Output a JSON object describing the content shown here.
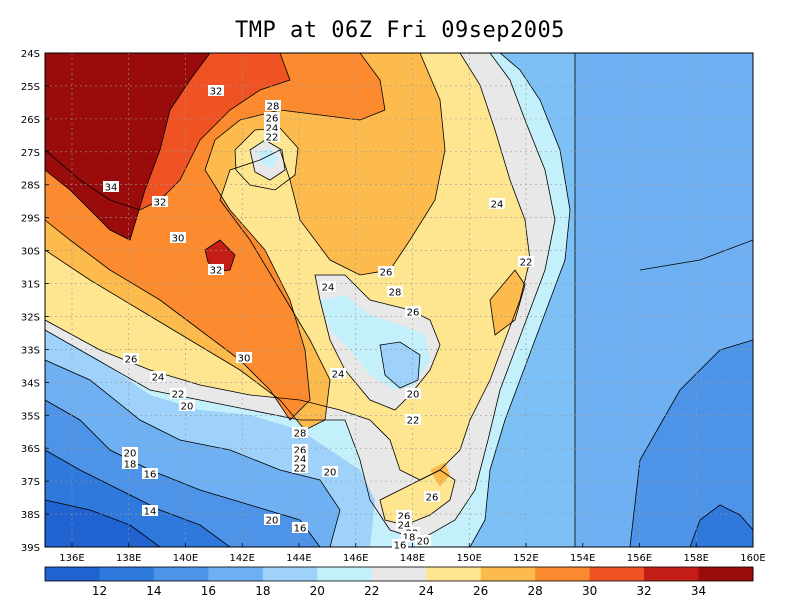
{
  "title": "TMP at 06Z Fri 09sep2005",
  "axes": {
    "lat_labels": [
      "24S",
      "25S",
      "26S",
      "27S",
      "28S",
      "29S",
      "30S",
      "31S",
      "32S",
      "33S",
      "34S",
      "35S",
      "36S",
      "37S",
      "38S",
      "39S"
    ],
    "lon_labels": [
      "136E",
      "138E",
      "140E",
      "142E",
      "144E",
      "146E",
      "148E",
      "150E",
      "152E",
      "154E",
      "156E",
      "158E",
      "160E"
    ]
  },
  "colorbar": {
    "labels": [
      "12",
      "14",
      "16",
      "18",
      "20",
      "22",
      "24",
      "26",
      "28",
      "30",
      "32",
      "34"
    ],
    "colors": [
      "#1f62d0",
      "#2f79dc",
      "#4d94e8",
      "#6eb0f2",
      "#9fd2fa",
      "#c3f0fa",
      "#e8e8e8",
      "#fee691",
      "#fcbb4c",
      "#fb8b2e",
      "#ef5223",
      "#c41d18",
      "#9a0b0b"
    ]
  },
  "contour_labels": [
    "32",
    "28",
    "26",
    "24",
    "22",
    "34",
    "32",
    "30",
    "32",
    "24",
    "26",
    "28",
    "26",
    "24",
    "22",
    "26",
    "24",
    "22",
    "20",
    "30",
    "24",
    "20",
    "22",
    "28",
    "26",
    "24",
    "22",
    "20",
    "20",
    "18",
    "16",
    "14",
    "20",
    "16",
    "26",
    "26",
    "24",
    "22",
    "20",
    "18",
    "16"
  ]
}
